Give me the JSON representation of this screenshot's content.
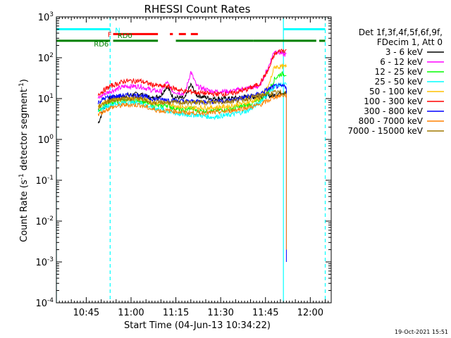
{
  "chart_data": {
    "type": "line",
    "title": "RHESSI Count Rates",
    "xlabel": "Start Time (04-Jun-13 10:34:22)",
    "ylabel_prefix": "Count Rate (s",
    "ylabel_sup1": "-1",
    "ylabel_mid": " detector segment",
    "ylabel_sup2": "-1",
    "ylabel_suffix": ")",
    "y_scale": "log",
    "x_unit": "UT time (HH:MM)",
    "xlim": [
      "10:35",
      "12:07"
    ],
    "ylim": [
      0.0001,
      1000
    ],
    "x_tick_labels": [
      "10:45",
      "11:00",
      "11:15",
      "11:30",
      "11:45",
      "12:00"
    ],
    "y_tick_labels": [
      {
        "base": "10",
        "exp": "3"
      },
      {
        "base": "10",
        "exp": "2"
      },
      {
        "base": "10",
        "exp": "1"
      },
      {
        "base": "10",
        "exp": "0"
      },
      {
        "base": "10",
        "exp": "-1"
      },
      {
        "base": "10",
        "exp": "-2"
      },
      {
        "base": "10",
        "exp": "-3"
      },
      {
        "base": "10",
        "exp": "-4"
      }
    ],
    "legend": {
      "position": "right",
      "header": [
        "Det 1f,3f,4f,5f,6f,9f,",
        "FDecim 1, Att 0"
      ]
    },
    "series": [
      {
        "name": "3 - 6 keV",
        "color": "#000000",
        "points": [
          [
            "10:49",
            2.5
          ],
          [
            "10:51",
            6
          ],
          [
            "10:53",
            10
          ],
          [
            "10:58",
            12
          ],
          [
            "11:03",
            13
          ],
          [
            "11:07",
            10
          ],
          [
            "11:10",
            12
          ],
          [
            "11:12",
            20
          ],
          [
            "11:14",
            11
          ],
          [
            "11:18",
            10
          ],
          [
            "11:20",
            22
          ],
          [
            "11:22",
            12
          ],
          [
            "11:27",
            10
          ],
          [
            "11:33",
            10
          ],
          [
            "11:39",
            11
          ],
          [
            "11:43",
            11
          ],
          [
            "11:48",
            12
          ],
          [
            "11:50",
            14
          ],
          [
            "11:52",
            14
          ]
        ]
      },
      {
        "name": "6 - 12 keV",
        "color": "#ff00ff",
        "points": [
          [
            "10:49",
            10
          ],
          [
            "10:51",
            13
          ],
          [
            "10:53",
            15
          ],
          [
            "10:58",
            20
          ],
          [
            "11:03",
            20
          ],
          [
            "11:07",
            16
          ],
          [
            "11:10",
            15
          ],
          [
            "11:12",
            25
          ],
          [
            "11:14",
            15
          ],
          [
            "11:18",
            13
          ],
          [
            "11:20",
            45
          ],
          [
            "11:22",
            20
          ],
          [
            "11:27",
            15
          ],
          [
            "11:33",
            15
          ],
          [
            "11:39",
            18
          ],
          [
            "11:43",
            20
          ],
          [
            "11:46",
            60
          ],
          [
            "11:48",
            150
          ],
          [
            "11:50",
            130
          ],
          [
            "11:51",
            120
          ],
          [
            "11:52",
            120
          ]
        ]
      },
      {
        "name": "12 - 25 keV",
        "color": "#00ff00",
        "points": [
          [
            "10:49",
            5
          ],
          [
            "10:51",
            7
          ],
          [
            "10:53",
            8
          ],
          [
            "10:58",
            9
          ],
          [
            "11:03",
            9
          ],
          [
            "11:07",
            7
          ],
          [
            "11:10",
            6.5
          ],
          [
            "11:12",
            7
          ],
          [
            "11:14",
            6
          ],
          [
            "11:18",
            5
          ],
          [
            "11:20",
            6
          ],
          [
            "11:22",
            5
          ],
          [
            "11:27",
            5
          ],
          [
            "11:33",
            5.5
          ],
          [
            "11:39",
            7
          ],
          [
            "11:43",
            9
          ],
          [
            "11:46",
            15
          ],
          [
            "11:48",
            30
          ],
          [
            "11:50",
            40
          ],
          [
            "11:52",
            40
          ]
        ]
      },
      {
        "name": "25 - 50 keV",
        "color": "#00ffff",
        "points": [
          [
            "10:49",
            5
          ],
          [
            "10:51",
            6
          ],
          [
            "10:53",
            7
          ],
          [
            "10:58",
            8
          ],
          [
            "11:03",
            8
          ],
          [
            "11:07",
            6
          ],
          [
            "11:10",
            5.5
          ],
          [
            "11:12",
            5
          ],
          [
            "11:14",
            4.5
          ],
          [
            "11:18",
            4
          ],
          [
            "11:20",
            4
          ],
          [
            "11:22",
            4
          ],
          [
            "11:27",
            3.5
          ],
          [
            "11:33",
            4
          ],
          [
            "11:39",
            5
          ],
          [
            "11:43",
            8
          ],
          [
            "11:46",
            13
          ],
          [
            "11:48",
            20
          ],
          [
            "11:50",
            22
          ],
          [
            "11:52",
            22
          ]
        ]
      },
      {
        "name": "50 - 100 keV",
        "color": "#ffc000",
        "points": [
          [
            "10:49",
            6
          ],
          [
            "10:51",
            8
          ],
          [
            "10:53",
            9
          ],
          [
            "10:58",
            10
          ],
          [
            "11:03",
            10
          ],
          [
            "11:07",
            8
          ],
          [
            "11:10",
            8
          ],
          [
            "11:12",
            8
          ],
          [
            "11:14",
            7
          ],
          [
            "11:18",
            6
          ],
          [
            "11:20",
            6
          ],
          [
            "11:22",
            6
          ],
          [
            "11:27",
            6
          ],
          [
            "11:33",
            6.5
          ],
          [
            "11:39",
            8
          ],
          [
            "11:43",
            10
          ],
          [
            "11:46",
            20
          ],
          [
            "11:48",
            60
          ],
          [
            "11:50",
            60
          ],
          [
            "11:52",
            60
          ]
        ]
      },
      {
        "name": "100 - 300 keV",
        "color": "#ff0000",
        "points": [
          [
            "10:49",
            13
          ],
          [
            "10:51",
            16
          ],
          [
            "10:53",
            20
          ],
          [
            "10:58",
            27
          ],
          [
            "11:03",
            27
          ],
          [
            "11:07",
            22
          ],
          [
            "11:10",
            20
          ],
          [
            "11:12",
            20
          ],
          [
            "11:14",
            18
          ],
          [
            "11:18",
            15
          ],
          [
            "11:20",
            15
          ],
          [
            "11:22",
            14
          ],
          [
            "11:27",
            13
          ],
          [
            "11:33",
            13
          ],
          [
            "11:39",
            17
          ],
          [
            "11:43",
            23
          ],
          [
            "11:46",
            50
          ],
          [
            "11:48",
            120
          ],
          [
            "11:50",
            150
          ],
          [
            "11:52",
            150
          ]
        ]
      },
      {
        "name": "300 - 800 keV",
        "color": "#0000ff",
        "points": [
          [
            "10:49",
            8
          ],
          [
            "10:51",
            10
          ],
          [
            "10:53",
            11
          ],
          [
            "10:58",
            12
          ],
          [
            "11:03",
            12
          ],
          [
            "11:07",
            10
          ],
          [
            "11:10",
            9.5
          ],
          [
            "11:12",
            9.5
          ],
          [
            "11:14",
            9
          ],
          [
            "11:18",
            8.5
          ],
          [
            "11:20",
            8.5
          ],
          [
            "11:22",
            8.5
          ],
          [
            "11:27",
            8.5
          ],
          [
            "11:33",
            9
          ],
          [
            "11:39",
            11
          ],
          [
            "11:43",
            13
          ],
          [
            "11:46",
            17
          ],
          [
            "11:48",
            20
          ],
          [
            "11:50",
            20
          ],
          [
            "11:52",
            20
          ],
          [
            "11:52",
            0.001
          ]
        ]
      },
      {
        "name": "800 - 7000 keV",
        "color": "#ff8000",
        "points": [
          [
            "10:49",
            4
          ],
          [
            "10:51",
            5
          ],
          [
            "10:53",
            6
          ],
          [
            "10:58",
            7
          ],
          [
            "11:03",
            7
          ],
          [
            "11:07",
            5.5
          ],
          [
            "11:10",
            5
          ],
          [
            "11:12",
            5
          ],
          [
            "11:14",
            5
          ],
          [
            "11:18",
            4.5
          ],
          [
            "11:20",
            4.5
          ],
          [
            "11:22",
            4.5
          ],
          [
            "11:27",
            4.5
          ],
          [
            "11:33",
            5
          ],
          [
            "11:39",
            6
          ],
          [
            "11:43",
            7
          ],
          [
            "11:46",
            9
          ],
          [
            "11:48",
            11
          ],
          [
            "11:50",
            12
          ],
          [
            "11:52",
            12
          ],
          [
            "11:52",
            0.002
          ]
        ]
      },
      {
        "name": "7000 - 15000 keV",
        "color": "#a07800",
        "points": [
          [
            "10:49",
            6
          ],
          [
            "10:51",
            8
          ],
          [
            "10:53",
            9
          ],
          [
            "10:58",
            10
          ],
          [
            "11:03",
            10
          ],
          [
            "11:07",
            8
          ],
          [
            "11:10",
            8
          ],
          [
            "11:12",
            8
          ],
          [
            "11:14",
            8
          ],
          [
            "11:18",
            8
          ],
          [
            "11:20",
            8
          ],
          [
            "11:22",
            8
          ],
          [
            "11:27",
            8
          ],
          [
            "11:33",
            8.5
          ],
          [
            "11:39",
            10
          ],
          [
            "11:43",
            12
          ],
          [
            "11:46",
            13
          ],
          [
            "11:48",
            14
          ],
          [
            "11:50",
            14
          ],
          [
            "11:52",
            14
          ]
        ]
      }
    ],
    "vertical_lines": [
      {
        "time": "10:35",
        "color": "#00ffff",
        "style": "solid"
      },
      {
        "time": "10:53",
        "color": "#00ffff",
        "style": "dashed"
      },
      {
        "time": "11:51",
        "color": "#00ffff",
        "style": "solid"
      },
      {
        "time": "12:05",
        "color": "#00ffff",
        "style": "dashed"
      }
    ],
    "flag_bars": [
      {
        "label": "",
        "color": "#00ffff",
        "y": 500,
        "style": "solid",
        "segments": [
          [
            "10:35",
            "10:53"
          ],
          [
            "11:51",
            "12:05"
          ]
        ]
      },
      {
        "label": "N",
        "color": "#00ffff",
        "y": 500,
        "style": "solid",
        "segments": []
      },
      {
        "label": "F",
        "color": "#ff0000",
        "y": 380,
        "style": "solid",
        "segments": [
          [
            "10:54",
            "11:09"
          ],
          [
            "11:13",
            "11:14"
          ]
        ]
      },
      {
        "label": "",
        "color": "#ff0000",
        "y": 380,
        "style": "dashed",
        "segments": [
          [
            "11:16",
            "11:24"
          ]
        ]
      },
      {
        "label": "RD0",
        "color": "#008000",
        "y": 260,
        "style": "solid",
        "segments": [
          [
            "10:54",
            "11:09"
          ],
          [
            "11:15",
            "11:41"
          ],
          [
            "11:41",
            "12:02"
          ],
          [
            "12:03",
            "12:05"
          ]
        ]
      },
      {
        "label": "RD6",
        "color": "#008000",
        "y": 260,
        "style": "solid",
        "segments": [
          [
            "10:35",
            "10:53"
          ]
        ]
      }
    ]
  },
  "timestamp": "19-Oct-2021 15:51"
}
